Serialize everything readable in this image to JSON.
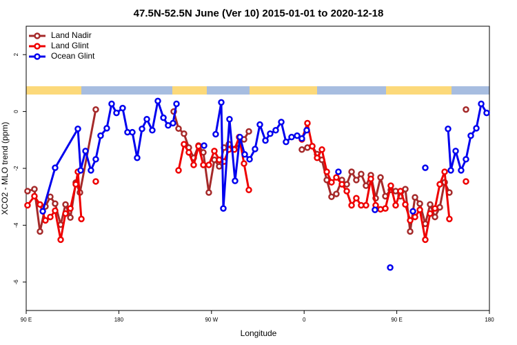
{
  "chart_data": {
    "type": "line",
    "title": "47.5N-52.5N June (Ver 10)   2015-01-01 to 2020-12-18",
    "x_label": "Longitude",
    "y_label": "XCO2 - MLO trend (ppm)",
    "xlim": [
      90,
      540
    ],
    "xticks": [
      {
        "value": 90,
        "label": "90 E"
      },
      {
        "value": 180,
        "label": "180"
      },
      {
        "value": 270,
        "label": "90 W"
      },
      {
        "value": 360,
        "label": "0"
      },
      {
        "value": 450,
        "label": "90 E"
      },
      {
        "value": 540,
        "label": "180"
      }
    ],
    "ylim": [
      -7,
      3
    ],
    "yticks": [
      -6,
      -4,
      -2,
      0,
      2
    ],
    "legend": "top-left",
    "series": [
      {
        "name": "Land Nadir",
        "color": "#a52a2a",
        "x": [
          91.3,
          98.0,
          103.4,
          108.7,
          113.4,
          118.1,
          123.5,
          128.2,
          132.9,
          138.2,
          142.2,
          157.6,
          null,
          233.3,
          238.0,
          243.3,
          248.0,
          252.7,
          257.4,
          262.1,
          267.4,
          272.8,
          277.5,
          282.2,
          286.9,
          292.2,
          296.9,
          301.6,
          306.3,
          null,
          357.8,
          363.2,
          367.9,
          372.6,
          377.3,
          382.0,
          386.6,
          391.3,
          396.7,
          401.4,
          406.1,
          410.7,
          415.4,
          420.1,
          424.8,
          429.5,
          434.2,
          438.9,
          444.2,
          448.9,
          453.6,
          458.3,
          463.0,
          467.7,
          472.4,
          477.7,
          482.4,
          487.1,
          491.8,
          496.5,
          501.1,
          null,
          517.2
        ],
        "values": [
          -2.8,
          -2.73,
          -4.22,
          -3.34,
          -3.0,
          -3.24,
          -3.98,
          -3.27,
          -3.73,
          -2.5,
          -2.85,
          0.07,
          null,
          0,
          -0.6,
          -0.78,
          -1.27,
          -1.63,
          -1.2,
          -1.44,
          -2.85,
          -1.7,
          -1.93,
          -1.27,
          -1.15,
          -1.32,
          -1.15,
          -0.98,
          -0.7,
          null,
          -1.34,
          -1.27,
          -1.22,
          -1.5,
          -1.7,
          -2.41,
          -3.0,
          -2.9,
          -2.41,
          -2.56,
          -2.12,
          -2.41,
          -2.2,
          -2.61,
          -2.24,
          -3.05,
          -2.32,
          -2.98,
          -2.76,
          -2.8,
          -2.98,
          -2.73,
          -4.22,
          -3.02,
          -3.24,
          -3.95,
          -3.27,
          -3.71,
          -3.37,
          -2.49,
          -2.85,
          null,
          0.07
        ]
      },
      {
        "name": "Land Glint",
        "color": "#ee0000",
        "x": [
          91.3,
          98.0,
          103.4,
          108.7,
          113.4,
          118.1,
          123.5,
          128.2,
          132.9,
          138.2,
          140.2,
          143.6,
          null,
          157.6,
          null,
          238.0,
          243.3,
          248.0,
          252.7,
          257.4,
          262.1,
          267.4,
          272.8,
          277.5,
          282.2,
          286.9,
          292.2,
          296.9,
          301.6,
          306.3,
          null,
          357.8,
          363.2,
          367.9,
          372.6,
          377.3,
          382.0,
          386.6,
          391.3,
          396.7,
          401.4,
          406.1,
          410.7,
          415.4,
          420.1,
          424.8,
          429.5,
          434.2,
          438.9,
          444.2,
          448.9,
          453.6,
          458.3,
          463.0,
          467.7,
          472.4,
          477.7,
          482.4,
          487.1,
          491.8,
          496.5,
          501.1,
          null,
          517.2
        ],
        "values": [
          -3.3,
          -2.98,
          -3.27,
          -3.83,
          -3.71,
          -3.49,
          -4.51,
          -3.59,
          -3.41,
          -2.56,
          -2.12,
          -3.78,
          null,
          -2.46,
          null,
          -2.07,
          -1.15,
          -1.44,
          -1.88,
          -1.22,
          -1.88,
          -1.88,
          -1.39,
          -1.7,
          -1.76,
          -1.34,
          -1.34,
          -0.9,
          -1.83,
          -2.76,
          null,
          -0.98,
          -0.41,
          -1.22,
          -1.63,
          -1.34,
          -2.12,
          -2.49,
          -2.32,
          -2.56,
          -2.8,
          -3.3,
          -3.05,
          -3.3,
          -3.3,
          -2.37,
          -3.3,
          -3.44,
          -3.41,
          -2.61,
          -3.3,
          -2.8,
          -3.27,
          -3.83,
          -3.71,
          -3.46,
          -4.51,
          -3.59,
          -3.41,
          -2.56,
          -2.12,
          -3.78,
          null,
          -2.46
        ]
      },
      {
        "name": "Ocean Glint",
        "color": "#0000ee",
        "x": [
          106.1,
          118.1,
          140.2,
          142.9,
          147.6,
          152.9,
          157.6,
          162.3,
          168.3,
          173.0,
          177.7,
          183.7,
          188.4,
          193.1,
          197.8,
          202.5,
          207.2,
          212.5,
          217.9,
          223.3,
          227.9,
          232.6,
          236.0,
          null,
          262.8,
          null,
          274.1,
          279.5,
          281.5,
          287.5,
          292.9,
          297.6,
          302.3,
          307.0,
          312.3,
          317.0,
          322.4,
          327.0,
          332.4,
          337.8,
          342.4,
          347.8,
          353.2,
          357.8,
          362.5,
          null,
          393.3,
          null,
          428.8,
          null,
          443.6,
          null,
          465.7,
          null,
          477.7,
          null,
          499.8,
          502.5,
          507.2,
          512.5,
          517.2,
          521.9,
          527.3,
          532.0,
          537.3
        ],
        "values": [
          -3.51,
          -1.98,
          -0.61,
          -2.07,
          -1.39,
          -2.07,
          -1.68,
          -0.85,
          -0.59,
          0.27,
          -0.05,
          0.12,
          -0.73,
          -0.73,
          -1.63,
          -0.61,
          -0.27,
          -0.66,
          0.37,
          -0.22,
          -0.49,
          -0.41,
          0.27,
          null,
          -1.2,
          null,
          -0.8,
          0.32,
          -3.41,
          -0.27,
          -2.44,
          -0.9,
          -1.51,
          -1.68,
          -1.32,
          -0.46,
          -1.02,
          -0.78,
          -0.66,
          -0.37,
          -1.07,
          -0.9,
          -0.85,
          -0.95,
          -0.66,
          null,
          -2.12,
          null,
          -3.46,
          null,
          -5.49,
          null,
          -3.51,
          null,
          -1.98,
          null,
          -0.61,
          -2.07,
          -1.39,
          -2.07,
          -1.68,
          -0.85,
          -0.59,
          0.27,
          -0.05
        ]
      }
    ]
  }
}
